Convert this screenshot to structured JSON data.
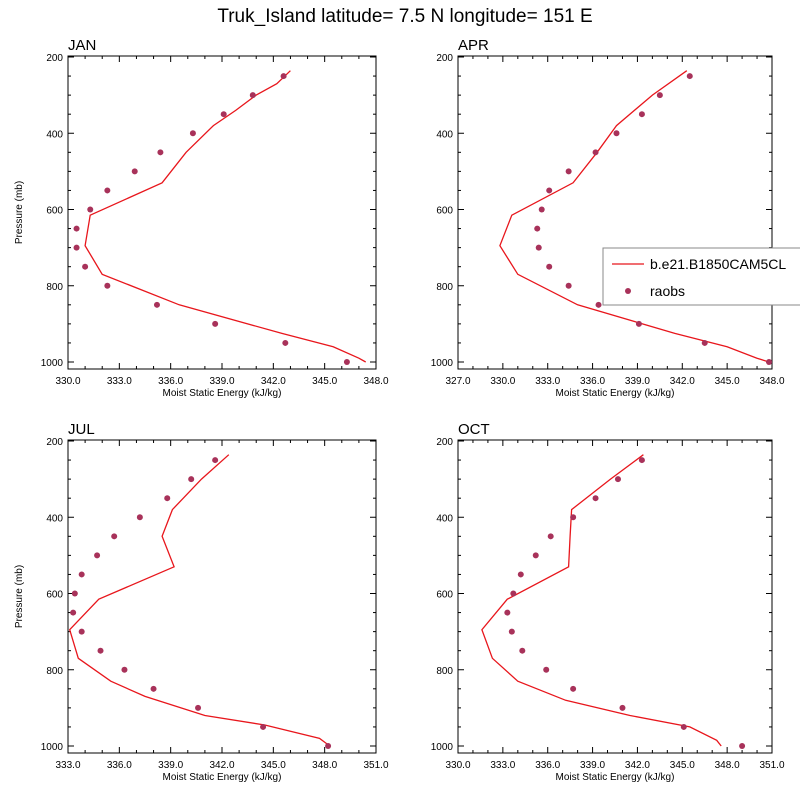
{
  "figure_title": "Truk_Island  latitude= 7.5 N longitude= 151 E",
  "legend": {
    "model_label": "b.e21.B1850CAM5CL",
    "obs_label": "raobs",
    "model_color": "#e8161c",
    "obs_color": "#a8325a"
  },
  "chart_data": [
    {
      "type": "line",
      "title": "JAN",
      "xlabel": "Moist Static Energy (kJ/kg)",
      "ylabel": "Pressure (mb)",
      "xlim": [
        330,
        348
      ],
      "ylim": [
        1000,
        200
      ],
      "xticks": [
        330,
        333,
        336,
        339,
        342,
        345,
        348
      ],
      "xtick_labels": [
        "330.0",
        "333.0",
        "336.0",
        "339.0",
        "342.0",
        "345.0",
        "348.0"
      ],
      "yticks": [
        200,
        400,
        600,
        800,
        1000
      ],
      "ytick_labels": [
        "200",
        "400",
        "600",
        "800",
        "1000"
      ],
      "model": {
        "pressure": [
          236,
          270,
          300,
          340,
          380,
          450,
          530,
          615,
          695,
          770,
          850,
          925,
          960,
          990,
          1000
        ],
        "mse": [
          343.0,
          342.2,
          341.0,
          339.8,
          338.5,
          336.9,
          335.5,
          331.3,
          331.0,
          332.0,
          336.5,
          342.5,
          345.5,
          347.0,
          347.4
        ]
      },
      "raobs": {
        "pressure": [
          250,
          300,
          350,
          400,
          450,
          500,
          550,
          600,
          650,
          700,
          750,
          800,
          850,
          900,
          950,
          1000
        ],
        "mse": [
          342.6,
          340.8,
          339.1,
          337.3,
          335.4,
          333.9,
          332.3,
          331.3,
          330.5,
          330.5,
          331.0,
          332.3,
          335.2,
          338.6,
          342.7,
          346.3
        ]
      }
    },
    {
      "type": "line",
      "title": "APR",
      "xlabel": "Moist Static Energy (kJ/kg)",
      "ylabel": "",
      "xlim": [
        327,
        348
      ],
      "ylim": [
        1000,
        200
      ],
      "xticks": [
        327,
        330,
        333,
        336,
        339,
        342,
        345,
        348
      ],
      "xtick_labels": [
        "327.0",
        "330.0",
        "333.0",
        "336.0",
        "339.0",
        "342.0",
        "345.0",
        "348.0"
      ],
      "yticks": [
        200,
        400,
        600,
        800,
        1000
      ],
      "ytick_labels": [
        "200",
        "400",
        "600",
        "800",
        "1000"
      ],
      "model": {
        "pressure": [
          236,
          300,
          380,
          450,
          530,
          615,
          695,
          770,
          850,
          925,
          960,
          990,
          1000
        ],
        "mse": [
          342.3,
          340.0,
          337.6,
          336.3,
          334.7,
          330.6,
          329.8,
          331.0,
          335.0,
          341.5,
          345.0,
          347.0,
          347.8
        ]
      },
      "raobs": {
        "pressure": [
          250,
          300,
          350,
          400,
          450,
          500,
          550,
          600,
          650,
          700,
          750,
          800,
          850,
          900,
          950,
          1000
        ],
        "mse": [
          342.5,
          340.5,
          339.3,
          337.6,
          336.2,
          334.4,
          333.1,
          332.6,
          332.3,
          332.4,
          333.1,
          334.4,
          336.4,
          339.1,
          343.5,
          347.8
        ]
      }
    },
    {
      "type": "line",
      "title": "JUL",
      "xlabel": "Moist Static Energy (kJ/kg)",
      "ylabel": "Pressure (mb)",
      "xlim": [
        333,
        351
      ],
      "ylim": [
        1000,
        200
      ],
      "xticks": [
        333,
        336,
        339,
        342,
        345,
        348,
        351
      ],
      "xtick_labels": [
        "333.0",
        "336.0",
        "339.0",
        "342.0",
        "345.0",
        "348.0",
        "351.0"
      ],
      "yticks": [
        200,
        400,
        600,
        800,
        1000
      ],
      "ytick_labels": [
        "200",
        "400",
        "600",
        "800",
        "1000"
      ],
      "model": {
        "pressure": [
          236,
          300,
          380,
          450,
          530,
          615,
          695,
          770,
          830,
          870,
          920,
          945,
          980,
          1000
        ],
        "mse": [
          342.4,
          340.8,
          339.1,
          338.5,
          339.2,
          334.8,
          333.1,
          333.6,
          335.5,
          337.5,
          341.0,
          344.5,
          347.7,
          348.3
        ]
      },
      "raobs": {
        "pressure": [
          250,
          300,
          350,
          400,
          450,
          500,
          550,
          600,
          650,
          700,
          750,
          800,
          850,
          900,
          950,
          1000
        ],
        "mse": [
          341.6,
          340.2,
          338.8,
          337.2,
          335.7,
          334.7,
          333.8,
          333.4,
          333.3,
          333.8,
          334.9,
          336.3,
          338.0,
          340.6,
          344.4,
          348.2
        ]
      }
    },
    {
      "type": "line",
      "title": "OCT",
      "xlabel": "Moist Static Energy (kJ/kg)",
      "ylabel": "",
      "xlim": [
        330,
        351
      ],
      "ylim": [
        1000,
        200
      ],
      "xticks": [
        330,
        333,
        336,
        339,
        342,
        345,
        348,
        351
      ],
      "xtick_labels": [
        "330.0",
        "333.0",
        "336.0",
        "339.0",
        "342.0",
        "345.0",
        "348.0",
        "351.0"
      ],
      "yticks": [
        200,
        400,
        600,
        800,
        1000
      ],
      "ytick_labels": [
        "200",
        "400",
        "600",
        "800",
        "1000"
      ],
      "model": {
        "pressure": [
          236,
          300,
          380,
          450,
          530,
          615,
          695,
          770,
          830,
          880,
          920,
          950,
          985,
          1000
        ],
        "mse": [
          342.4,
          340.2,
          337.6,
          337.5,
          337.4,
          333.3,
          331.6,
          332.3,
          334.0,
          337.2,
          341.5,
          345.5,
          347.3,
          347.6
        ]
      },
      "raobs": {
        "pressure": [
          250,
          300,
          350,
          400,
          450,
          500,
          550,
          600,
          650,
          700,
          750,
          800,
          850,
          900,
          950,
          1000
        ],
        "mse": [
          342.3,
          340.7,
          339.2,
          337.7,
          336.2,
          335.2,
          334.2,
          333.7,
          333.3,
          333.6,
          334.3,
          335.9,
          337.7,
          341.0,
          345.1,
          349.0
        ]
      }
    }
  ]
}
